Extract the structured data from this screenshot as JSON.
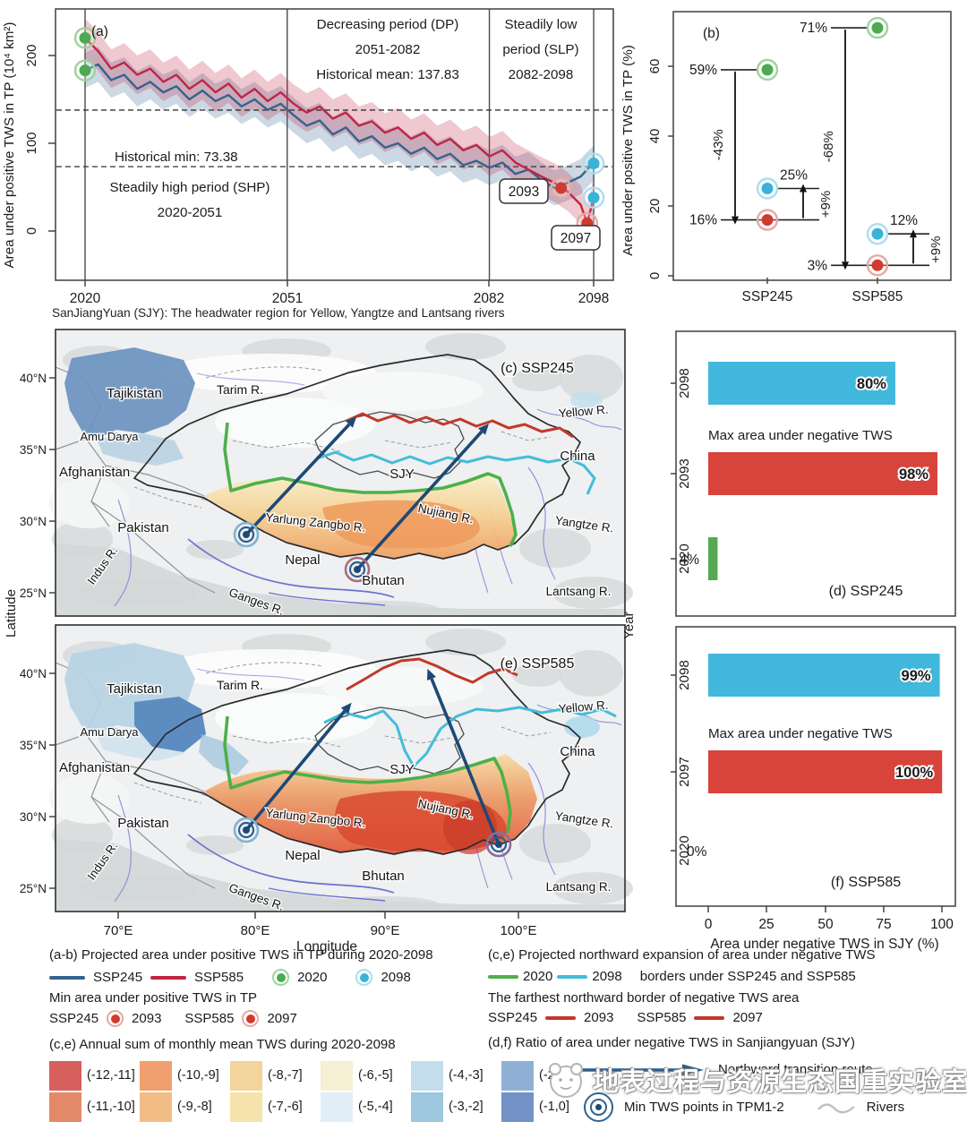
{
  "figure": {
    "caption_sjy": "SanJiangYuan (SJY): The headwater region for Yellow, Yangtze and Lantsang rivers",
    "watermark": "地表过程与资源生态国重实验室"
  },
  "colors": {
    "ssp245": "#35638e",
    "ssp585": "#c02545",
    "dot_2020": "#4cab50",
    "ring_2020": "#9bd49b",
    "dot_2098": "#37b4d8",
    "ring_2098": "#a9def0",
    "dot_min": "#d23a2e",
    "ring_min": "#e8a8a0",
    "border_2020": "#4db04a",
    "border_2098": "#45bcd9",
    "border_far": "#c0392b",
    "bar_cyan": "#41b8dc",
    "bar_red": "#d8433c",
    "bar_green": "#55a954",
    "route_arrow": "#1d4976"
  },
  "chart_data": [
    {
      "type": "line",
      "tag": "(a)",
      "ylabel": "Area under positive TWS in TP (10⁴ km²)",
      "yticks": [
        "0",
        "100",
        "200"
      ],
      "xticks": [
        "2020",
        "2051",
        "2082",
        "2098"
      ],
      "ylim": [
        -55,
        250
      ],
      "x": [
        2020,
        2022,
        2024,
        2026,
        2028,
        2030,
        2032,
        2034,
        2036,
        2038,
        2040,
        2042,
        2044,
        2046,
        2048,
        2050,
        2052,
        2054,
        2056,
        2058,
        2060,
        2062,
        2064,
        2066,
        2068,
        2070,
        2072,
        2074,
        2076,
        2078,
        2080,
        2082,
        2084,
        2086,
        2088,
        2090,
        2092,
        2094,
        2096,
        2097,
        2098
      ],
      "series": [
        {
          "name": "SSP245",
          "color": "#35638e",
          "band": 20,
          "values": [
            183,
            190,
            172,
            178,
            162,
            170,
            158,
            165,
            150,
            160,
            148,
            155,
            142,
            150,
            138,
            145,
            132,
            120,
            126,
            110,
            118,
            102,
            108,
            95,
            100,
            88,
            95,
            82,
            88,
            75,
            80,
            72,
            78,
            65,
            70,
            58,
            49,
            55,
            62,
            70,
            77
          ]
        },
        {
          "name": "SSP585",
          "color": "#c02545",
          "band": 22,
          "values": [
            220,
            205,
            185,
            192,
            178,
            185,
            170,
            178,
            162,
            172,
            158,
            168,
            152,
            162,
            148,
            158,
            145,
            135,
            142,
            128,
            135,
            120,
            125,
            112,
            118,
            105,
            112,
            98,
            105,
            92,
            98,
            85,
            92,
            78,
            70,
            62,
            55,
            45,
            30,
            9,
            38
          ]
        }
      ],
      "hlines": [
        {
          "name": "historical-mean",
          "value": 137.83
        },
        {
          "name": "historical-min",
          "value": 73.38
        }
      ],
      "vlines": [
        2020,
        2051,
        2082,
        2098
      ],
      "annotations": {
        "dp1": "Decreasing period (DP)",
        "dp2": "2051-2082",
        "dp3": "Historical mean: 137.83",
        "slp1": "Steadily low",
        "slp2": "period (SLP)",
        "slp3": "2082-2098",
        "histmin": "Historical min: 73.38",
        "shp1": "Steadily high period (SHP)",
        "shp2": "2020-2051"
      },
      "markers": [
        {
          "year": 2020,
          "value": 220,
          "color": "#4cab50",
          "ring": "#9bd49b"
        },
        {
          "year": 2020,
          "value": 183,
          "color": "#4cab50",
          "ring": "#9bd49b"
        },
        {
          "year": 2098,
          "value": 77,
          "color": "#37b4d8",
          "ring": "#a9def0"
        },
        {
          "year": 2098,
          "value": 38,
          "color": "#37b4d8",
          "ring": "#a9def0"
        },
        {
          "year": 2093,
          "value": 49,
          "color": "#d23a2e",
          "ring": "#e8a8a0"
        },
        {
          "year": 2097,
          "value": 9,
          "color": "#d23a2e",
          "ring": "#e8a8a0"
        }
      ],
      "marker_boxes": [
        {
          "label": "2093"
        },
        {
          "label": "2097"
        }
      ]
    },
    {
      "type": "scatter",
      "tag": "(b)",
      "ylabel": "Area under positive TWS in TP (%)",
      "yticks": [
        "0",
        "20",
        "40",
        "60"
      ],
      "ylim": [
        0,
        75
      ],
      "groups": [
        {
          "label": "SSP245",
          "green": 59,
          "cyan": 25,
          "red": 16,
          "green_label": "59%",
          "cyan_label": "25%",
          "red_label": "16%",
          "drop_label": "-43%",
          "rise_label": "+9%"
        },
        {
          "label": "SSP585",
          "green": 71,
          "cyan": 12,
          "red": 3,
          "green_label": "71%",
          "cyan_label": "12%",
          "red_label": "3%",
          "drop_label": "-68%",
          "rise_label": "+9%"
        }
      ]
    },
    {
      "type": "bar",
      "tag": "(d) SSP245",
      "note": "Max area under negative TWS",
      "ylabel": "Year",
      "categories": [
        "2098",
        "2093",
        "2020"
      ],
      "values": [
        80,
        98,
        4
      ],
      "value_labels": [
        "80%",
        "98%",
        "4%"
      ],
      "colors": [
        "#41b8dc",
        "#d8433c",
        "#55a954"
      ],
      "xlim": [
        0,
        100
      ]
    },
    {
      "type": "bar",
      "tag": "(f) SSP585",
      "note": "Max area under negative TWS",
      "categories": [
        "2098",
        "2097",
        "2020"
      ],
      "values": [
        99,
        100,
        0
      ],
      "value_labels": [
        "99%",
        "100%",
        "0%"
      ],
      "colors": [
        "#41b8dc",
        "#d8433c",
        "#55a954"
      ],
      "xticks": [
        "0",
        "25",
        "50",
        "75",
        "100"
      ],
      "xlabel": "Area under negative TWS in SJY (%)",
      "xlim": [
        0,
        100
      ]
    }
  ],
  "maps": {
    "c_tag": "(c) SSP245",
    "e_tag": "(e) SSP585",
    "xlabel": "Longitude",
    "ylabel": "Latitude",
    "lat_ticks": [
      "40°N",
      "35°N",
      "30°N",
      "25°N"
    ],
    "lon_ticks": [
      "70°E",
      "80°E",
      "90°E",
      "100°E"
    ],
    "labels": {
      "tajikistan": "Tajikistan",
      "tarim": "Tarim R.",
      "amu": "Amu Darya",
      "afghanistan": "Afghanistan",
      "yellow": "Yellow R.",
      "china": "China",
      "sjy": "SJY",
      "pakistan": "Pakistan",
      "indus": "Indus R.",
      "yarlung": "Yarlung Zangbo R.",
      "nepal": "Nepal",
      "ganges": "Ganges R.",
      "bhutan": "Bhutan",
      "nujiang": "Nujiang R.",
      "yangtze": "Yangtze R.",
      "lantsang": "Lantsang R."
    }
  },
  "legend": {
    "ab_title": "(a-b) Projected area under positive TWS in TP during 2020-2098",
    "ab_ssp245": "SSP245",
    "ab_ssp585": "SSP585",
    "ab_2020": "2020",
    "ab_2098": "2098",
    "min_title": "Min area under positive TWS in TP",
    "min_ssp245": "SSP245",
    "min_2093": "2093",
    "min_ssp585": "SSP585",
    "min_2097": "2097",
    "ce_title": "(c,e) Projected northward expansion of area under negative TWS",
    "ce_2020": "2020",
    "ce_2098": "2098",
    "ce_borders": "borders under SSP245 and SSP585",
    "far_title": "The farthest northward border of negative TWS area",
    "far_ssp245": "SSP245",
    "far_2093": "2093",
    "far_ssp585": "SSP585",
    "far_2097": "2097",
    "df_title": "(d,f) Ratio of area under negative TWS in Sanjiangyuan (SJY)",
    "northward": "Northward transition route",
    "min_tws": "Min TWS points in TPM1-2",
    "rivers": "Rivers"
  },
  "colorscale": {
    "title": "(c,e) Annual sum of monthly mean TWS during 2020-2098",
    "items": [
      {
        "range": "(-12,-11]",
        "color": "#d5605e"
      },
      {
        "range": "(-11,-10]",
        "color": "#e28a68"
      },
      {
        "range": "(-10,-9]",
        "color": "#efa06e"
      },
      {
        "range": "(-9,-8]",
        "color": "#f2bc85"
      },
      {
        "range": "(-8,-7]",
        "color": "#f3d49c"
      },
      {
        "range": "(-7,-6]",
        "color": "#f6e2ab"
      },
      {
        "range": "(-6,-5]",
        "color": "#f5efd3"
      },
      {
        "range": "(-5,-4]",
        "color": "#e2eef7"
      },
      {
        "range": "(-4,-3]",
        "color": "#c4dded"
      },
      {
        "range": "(-3,-2]",
        "color": "#9ec6de"
      },
      {
        "range": "(-2,-1]",
        "color": "#8fb0d4"
      },
      {
        "range": "(-1,0]",
        "color": "#7292c5"
      }
    ]
  }
}
